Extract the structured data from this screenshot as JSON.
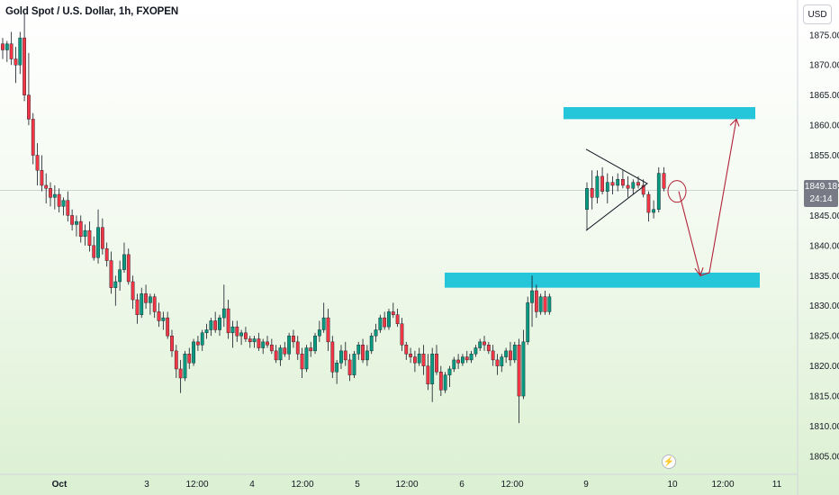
{
  "title": "Gold Spot / U.S. Dollar, 1h, FXOPEN",
  "currency_button": "USD",
  "last_price": "1849.18",
  "countdown": "24:14",
  "colors": {
    "up": "#089981",
    "down": "#f23645",
    "wick": "#131722",
    "zone": "#26c6da",
    "arrow": "#b2233a",
    "axis_text": "#131722"
  },
  "chart_data": {
    "type": "candlestick",
    "symbol": "XAUUSD",
    "timeframe": "1h",
    "ylim": [
      1802,
      1879
    ],
    "y_ticks": [
      1805,
      1810,
      1815,
      1820,
      1825,
      1830,
      1835,
      1840,
      1845,
      1850,
      1855,
      1860,
      1865,
      1870,
      1875
    ],
    "y_tick_labels": [
      "1805.00",
      "1810.00",
      "1815.00",
      "1820.00",
      "1825.00",
      "1830.00",
      "1835.00",
      "1840.00",
      "1845.00",
      "1850.00",
      "1855.00",
      "1860.00",
      "1865.00",
      "1870.00",
      "1875.00"
    ],
    "x_ticks": [
      "Oct",
      "3",
      "12:00",
      "4",
      "12:00",
      "5",
      "12:00",
      "6",
      "12:00",
      "9",
      "10",
      "12:00",
      "11"
    ],
    "last_price": 1849.18,
    "candles": [
      [
        1873.5,
        1874.5,
        1871.0,
        1872.5
      ],
      [
        1872.5,
        1874.0,
        1870.5,
        1873.5
      ],
      [
        1873.5,
        1875.5,
        1870.0,
        1871.0
      ],
      [
        1871.0,
        1873.0,
        1867.0,
        1870.0
      ],
      [
        1870.0,
        1875.5,
        1868.5,
        1874.5
      ],
      [
        1874.5,
        1878.5,
        1864.0,
        1865.0
      ],
      [
        1865.0,
        1872.0,
        1860.0,
        1861.0
      ],
      [
        1861.0,
        1862.0,
        1853.5,
        1855.0
      ],
      [
        1855.0,
        1857.0,
        1850.0,
        1852.5
      ],
      [
        1852.5,
        1855.0,
        1849.0,
        1850.0
      ],
      [
        1850.0,
        1852.0,
        1847.0,
        1849.5
      ],
      [
        1849.5,
        1850.5,
        1846.5,
        1848.0
      ],
      [
        1848.0,
        1850.0,
        1846.0,
        1848.5
      ],
      [
        1848.5,
        1849.5,
        1845.5,
        1846.5
      ],
      [
        1846.5,
        1848.0,
        1845.0,
        1847.5
      ],
      [
        1847.5,
        1849.0,
        1844.0,
        1845.0
      ],
      [
        1845.0,
        1846.0,
        1842.5,
        1843.5
      ],
      [
        1843.5,
        1845.0,
        1841.5,
        1844.0
      ],
      [
        1844.0,
        1845.0,
        1840.5,
        1841.5
      ],
      [
        1841.5,
        1843.5,
        1840.0,
        1842.5
      ],
      [
        1842.5,
        1844.0,
        1839.0,
        1840.0
      ],
      [
        1840.0,
        1841.5,
        1837.5,
        1838.0
      ],
      [
        1838.0,
        1846.0,
        1837.0,
        1843.0
      ],
      [
        1843.0,
        1844.5,
        1838.5,
        1839.5
      ],
      [
        1839.5,
        1840.5,
        1836.5,
        1837.5
      ],
      [
        1837.5,
        1839.0,
        1832.0,
        1833.0
      ],
      [
        1833.0,
        1835.0,
        1830.0,
        1834.0
      ],
      [
        1834.0,
        1837.5,
        1832.5,
        1836.0
      ],
      [
        1836.0,
        1840.5,
        1835.5,
        1838.5
      ],
      [
        1838.5,
        1839.5,
        1833.5,
        1834.0
      ],
      [
        1834.0,
        1835.0,
        1829.5,
        1831.0
      ],
      [
        1831.0,
        1832.0,
        1827.0,
        1828.5
      ],
      [
        1828.5,
        1833.0,
        1828.0,
        1832.0
      ],
      [
        1832.0,
        1833.5,
        1829.5,
        1830.5
      ],
      [
        1830.5,
        1832.0,
        1828.5,
        1831.5
      ],
      [
        1831.5,
        1832.0,
        1828.0,
        1829.0
      ],
      [
        1829.0,
        1830.5,
        1826.5,
        1827.5
      ],
      [
        1827.5,
        1829.0,
        1826.0,
        1828.0
      ],
      [
        1828.0,
        1829.0,
        1824.5,
        1825.0
      ],
      [
        1825.0,
        1826.0,
        1821.5,
        1822.5
      ],
      [
        1822.5,
        1823.5,
        1818.0,
        1819.5
      ],
      [
        1819.5,
        1821.0,
        1815.5,
        1818.0
      ],
      [
        1818.0,
        1822.5,
        1817.5,
        1822.0
      ],
      [
        1822.0,
        1823.0,
        1819.5,
        1820.5
      ],
      [
        1820.5,
        1824.5,
        1820.0,
        1824.0
      ],
      [
        1824.0,
        1825.0,
        1822.5,
        1823.5
      ],
      [
        1823.5,
        1826.0,
        1822.5,
        1825.5
      ],
      [
        1825.5,
        1827.0,
        1824.5,
        1826.0
      ],
      [
        1826.0,
        1828.0,
        1825.0,
        1827.5
      ],
      [
        1827.5,
        1829.0,
        1825.5,
        1826.0
      ],
      [
        1826.0,
        1828.5,
        1825.0,
        1828.0
      ],
      [
        1828.0,
        1833.5,
        1826.5,
        1829.5
      ],
      [
        1829.5,
        1831.0,
        1824.5,
        1825.5
      ],
      [
        1825.5,
        1827.5,
        1823.0,
        1826.5
      ],
      [
        1826.5,
        1827.5,
        1824.0,
        1825.0
      ],
      [
        1825.0,
        1826.0,
        1823.5,
        1825.5
      ],
      [
        1825.5,
        1826.5,
        1824.0,
        1824.5
      ],
      [
        1824.5,
        1825.0,
        1823.0,
        1824.0
      ],
      [
        1824.0,
        1825.0,
        1823.0,
        1824.5
      ],
      [
        1824.5,
        1825.5,
        1822.5,
        1823.0
      ],
      [
        1823.0,
        1824.5,
        1822.0,
        1824.0
      ],
      [
        1824.0,
        1825.0,
        1823.0,
        1823.5
      ],
      [
        1823.5,
        1824.5,
        1822.0,
        1822.5
      ],
      [
        1822.5,
        1823.5,
        1820.5,
        1821.0
      ],
      [
        1821.0,
        1823.5,
        1820.0,
        1823.0
      ],
      [
        1823.0,
        1824.0,
        1821.5,
        1822.0
      ],
      [
        1822.0,
        1825.5,
        1821.0,
        1825.0
      ],
      [
        1825.0,
        1826.0,
        1823.0,
        1824.0
      ],
      [
        1824.0,
        1825.0,
        1821.0,
        1822.0
      ],
      [
        1822.0,
        1823.0,
        1818.0,
        1819.5
      ],
      [
        1819.5,
        1823.5,
        1819.0,
        1823.0
      ],
      [
        1823.0,
        1824.0,
        1821.5,
        1822.5
      ],
      [
        1822.5,
        1825.5,
        1822.0,
        1825.0
      ],
      [
        1825.0,
        1827.5,
        1824.0,
        1826.0
      ],
      [
        1826.0,
        1830.5,
        1825.5,
        1828.0
      ],
      [
        1828.0,
        1829.5,
        1822.5,
        1824.0
      ],
      [
        1824.0,
        1825.0,
        1818.0,
        1819.0
      ],
      [
        1819.0,
        1821.0,
        1817.0,
        1820.5
      ],
      [
        1820.5,
        1823.5,
        1819.5,
        1822.5
      ],
      [
        1822.5,
        1824.0,
        1820.0,
        1821.0
      ],
      [
        1821.0,
        1822.0,
        1817.5,
        1818.5
      ],
      [
        1818.5,
        1822.5,
        1818.0,
        1822.0
      ],
      [
        1822.0,
        1824.0,
        1821.0,
        1823.5
      ],
      [
        1823.5,
        1824.5,
        1820.5,
        1821.0
      ],
      [
        1821.0,
        1823.5,
        1820.0,
        1822.5
      ],
      [
        1822.5,
        1825.5,
        1822.0,
        1825.0
      ],
      [
        1825.0,
        1827.0,
        1824.0,
        1826.0
      ],
      [
        1826.0,
        1828.5,
        1825.5,
        1828.0
      ],
      [
        1828.0,
        1829.0,
        1826.0,
        1826.5
      ],
      [
        1826.5,
        1829.5,
        1826.0,
        1829.0
      ],
      [
        1829.0,
        1830.5,
        1828.0,
        1828.5
      ],
      [
        1828.5,
        1829.5,
        1826.5,
        1827.0
      ],
      [
        1827.0,
        1828.0,
        1822.5,
        1823.5
      ],
      [
        1823.5,
        1824.0,
        1821.0,
        1822.0
      ],
      [
        1822.0,
        1823.0,
        1820.5,
        1821.5
      ],
      [
        1821.5,
        1822.5,
        1819.0,
        1820.5
      ],
      [
        1820.5,
        1823.0,
        1820.0,
        1822.0
      ],
      [
        1822.0,
        1823.5,
        1818.5,
        1820.0
      ],
      [
        1820.0,
        1822.0,
        1816.0,
        1817.0
      ],
      [
        1817.0,
        1823.0,
        1814.0,
        1822.0
      ],
      [
        1822.0,
        1823.5,
        1818.5,
        1819.0
      ],
      [
        1819.0,
        1820.0,
        1815.0,
        1816.0
      ],
      [
        1816.0,
        1819.0,
        1815.5,
        1818.5
      ],
      [
        1818.5,
        1820.0,
        1816.5,
        1819.5
      ],
      [
        1819.5,
        1821.5,
        1819.0,
        1821.0
      ],
      [
        1821.0,
        1822.0,
        1819.5,
        1820.5
      ],
      [
        1820.5,
        1822.0,
        1820.0,
        1821.5
      ],
      [
        1821.5,
        1822.5,
        1820.5,
        1821.0
      ],
      [
        1821.0,
        1822.5,
        1820.5,
        1822.0
      ],
      [
        1822.0,
        1823.5,
        1821.5,
        1823.0
      ],
      [
        1823.0,
        1824.5,
        1822.5,
        1824.0
      ],
      [
        1824.0,
        1825.0,
        1822.5,
        1823.5
      ],
      [
        1823.5,
        1824.0,
        1822.0,
        1822.5
      ],
      [
        1822.5,
        1823.5,
        1820.0,
        1821.0
      ],
      [
        1821.0,
        1822.0,
        1818.5,
        1820.0
      ],
      [
        1820.0,
        1822.0,
        1819.0,
        1821.5
      ],
      [
        1821.5,
        1823.0,
        1820.5,
        1822.5
      ],
      [
        1822.5,
        1824.0,
        1820.0,
        1821.0
      ],
      [
        1821.0,
        1824.0,
        1820.5,
        1823.5
      ],
      [
        1823.5,
        1824.5,
        1810.5,
        1815.0
      ],
      [
        1815.0,
        1826.0,
        1814.5,
        1824.0
      ],
      [
        1824.0,
        1831.5,
        1823.5,
        1830.5
      ],
      [
        1830.5,
        1835.0,
        1826.5,
        1832.5
      ],
      [
        1832.5,
        1833.5,
        1828.0,
        1829.0
      ],
      [
        1829.0,
        1832.0,
        1828.5,
        1831.5
      ],
      [
        1831.5,
        1832.5,
        1828.5,
        1829.0
      ],
      [
        1829.0,
        1832.0,
        1828.5,
        1831.5
      ],
      [
        1846.0,
        1850.5,
        1842.5,
        1849.5
      ],
      [
        1849.5,
        1852.5,
        1846.0,
        1848.0
      ],
      [
        1848.0,
        1852.5,
        1847.0,
        1851.5
      ],
      [
        1851.5,
        1853.0,
        1848.5,
        1849.0
      ],
      [
        1849.0,
        1852.0,
        1847.0,
        1850.5
      ],
      [
        1850.5,
        1851.5,
        1848.5,
        1850.0
      ],
      [
        1850.0,
        1852.0,
        1849.0,
        1851.0
      ],
      [
        1851.0,
        1852.5,
        1849.5,
        1850.0
      ],
      [
        1850.0,
        1851.5,
        1848.0,
        1849.5
      ],
      [
        1849.5,
        1851.0,
        1848.5,
        1850.5
      ],
      [
        1850.5,
        1851.5,
        1849.5,
        1850.0
      ],
      [
        1850.0,
        1851.0,
        1848.0,
        1848.5
      ],
      [
        1848.5,
        1849.0,
        1844.0,
        1845.5
      ],
      [
        1845.5,
        1847.5,
        1844.5,
        1846.0
      ],
      [
        1846.0,
        1853.0,
        1845.5,
        1852.0
      ],
      [
        1852.0,
        1853.0,
        1849.0,
        1849.5
      ]
    ],
    "annotations": [
      {
        "type": "support_zone",
        "price_from": 1833.0,
        "price_to": 1835.5
      },
      {
        "type": "target_zone",
        "price_from": 1861.0,
        "price_to": 1863.0
      },
      {
        "type": "triangle_pattern"
      },
      {
        "type": "ellipse"
      },
      {
        "type": "arrow_path",
        "points": [
          1849.0,
          1835.0,
          1861.0
        ]
      }
    ]
  }
}
